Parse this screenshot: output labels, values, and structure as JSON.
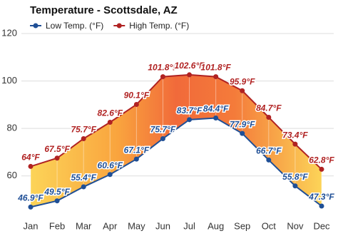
{
  "chart_data": {
    "type": "line",
    "title": "Temperature - Scottsdale, AZ",
    "categories": [
      "Jan",
      "Feb",
      "Mar",
      "Apr",
      "May",
      "Jun",
      "Jul",
      "Aug",
      "Sep",
      "Oct",
      "Nov",
      "Dec"
    ],
    "series": [
      {
        "name": "Low Temp. (°F)",
        "color": "#1f4f96",
        "values": [
          46.9,
          49.5,
          55.4,
          60.6,
          67.1,
          75.7,
          83.7,
          84.4,
          77.9,
          66.7,
          55.8,
          47.3
        ],
        "value_labels": [
          "46.9°F",
          "49.5°F",
          "55.4°F",
          "60.6°F",
          "67.1°F",
          "75.7°F",
          "83.7°F",
          "84.4°F",
          "77.9°F",
          "66.7°F",
          "55.8°F",
          "47.3°F"
        ]
      },
      {
        "name": "High Temp. (°F)",
        "color": "#b02222",
        "values": [
          64,
          67.5,
          75.7,
          82.6,
          90.1,
          101.8,
          102.6,
          101.8,
          95.9,
          84.7,
          73.4,
          62.8
        ],
        "value_labels": [
          "64°F",
          "67.5°F",
          "75.7°F",
          "82.6°F",
          "90.1°F",
          "101.8°F",
          "102.6°F",
          "101.8°F",
          "95.9°F",
          "84.7°F",
          "73.4°F",
          "62.8°F"
        ]
      }
    ],
    "ylim": [
      44,
      123
    ],
    "yticks": [
      60,
      80,
      100,
      120
    ],
    "grid": true,
    "legend": "top-left"
  }
}
